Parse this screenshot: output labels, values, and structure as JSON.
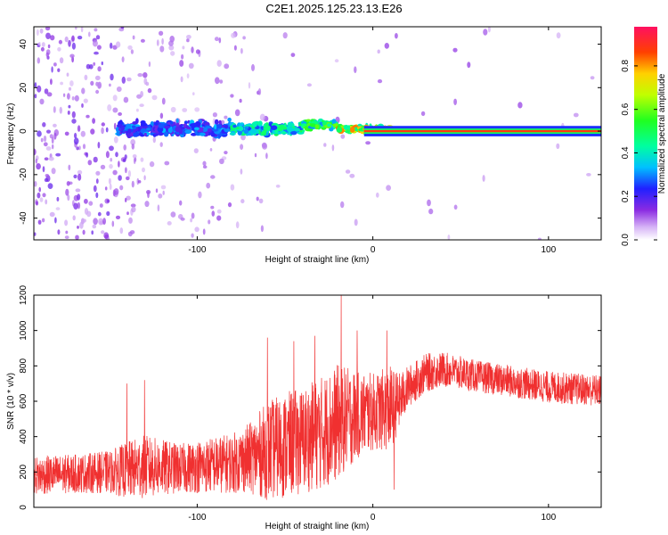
{
  "title": "C2E1.2025.125.23.13.E26",
  "chart_data": [
    {
      "type": "heatmap",
      "xlabel": "Height of straight line (km)",
      "ylabel": "Frequency (Hz)",
      "xlim": [
        -193,
        130
      ],
      "ylim": [
        -50,
        48
      ],
      "xticks": [
        -100,
        0,
        100
      ],
      "xtick_labels": [
        "-100",
        "0",
        "100"
      ],
      "yticks": [
        -40,
        -20,
        0,
        20,
        40
      ],
      "ytick_labels": [
        "-40",
        "-20",
        "0",
        "20",
        "40"
      ],
      "colorbar": {
        "label": "Normalized spectral amplitude",
        "range": [
          0,
          0.98
        ],
        "ticks": [
          0.0,
          0.2,
          0.4,
          0.6,
          0.8
        ],
        "tick_labels": [
          "0.0",
          "0.2",
          "0.4",
          "0.6",
          "0.8"
        ]
      },
      "features": {
        "steady_line": {
          "x_start": -5,
          "x_end": 130,
          "frequency": 0,
          "amplitude": 0.9
        },
        "band_segments": [
          {
            "x_start": -145,
            "x_end": -80,
            "frequency": 1,
            "spread": 5,
            "amplitude": 0.3
          },
          {
            "x_start": -80,
            "x_end": -40,
            "frequency": 1,
            "spread": 4,
            "amplitude": 0.45
          },
          {
            "x_start": -40,
            "x_end": -20,
            "frequency": 3,
            "spread": 3,
            "amplitude": 0.55
          },
          {
            "x_start": -20,
            "x_end": 10,
            "frequency": 1,
            "spread": 2,
            "amplitude": 0.75
          }
        ],
        "scatter_region_x": [
          -193,
          -60
        ]
      },
      "grid": false
    },
    {
      "type": "line",
      "xlabel": "Height of straight line (km)",
      "ylabel": "SNR (10 * v/v)",
      "xlim": [
        -193,
        130
      ],
      "ylim": [
        0,
        1200
      ],
      "xticks": [
        -100,
        0,
        100
      ],
      "xtick_labels": [
        "-100",
        "0",
        "100"
      ],
      "yticks": [
        0,
        200,
        400,
        600,
        800,
        1000,
        1200
      ],
      "ytick_labels": [
        "0",
        "200",
        "400",
        "600",
        "800",
        "1000",
        "1200"
      ],
      "color": "#f03030",
      "envelope": {
        "x": [
          -193,
          -170,
          -150,
          -140,
          -130,
          -110,
          -90,
          -80,
          -70,
          -60,
          -50,
          -40,
          -30,
          -20,
          -10,
          0,
          10,
          15,
          20,
          30,
          40,
          60,
          80,
          100,
          130
        ],
        "mean": [
          180,
          190,
          200,
          210,
          230,
          220,
          240,
          250,
          280,
          320,
          350,
          380,
          420,
          480,
          520,
          540,
          560,
          600,
          680,
          760,
          780,
          740,
          710,
          680,
          660
        ],
        "spread": [
          110,
          110,
          120,
          160,
          180,
          140,
          160,
          170,
          200,
          280,
          300,
          300,
          320,
          330,
          260,
          220,
          240,
          160,
          120,
          110,
          100,
          90,
          90,
          90,
          90
        ]
      },
      "spikes": [
        {
          "x": -140,
          "y": 700
        },
        {
          "x": -130,
          "y": 720
        },
        {
          "x": -60,
          "y": 960
        },
        {
          "x": -45,
          "y": 940
        },
        {
          "x": -33,
          "y": 970
        },
        {
          "x": -18,
          "y": 1200
        },
        {
          "x": -9,
          "y": 1000
        },
        {
          "x": 8,
          "y": 1000
        },
        {
          "x": 12,
          "y": 100
        }
      ],
      "grid": false
    }
  ]
}
